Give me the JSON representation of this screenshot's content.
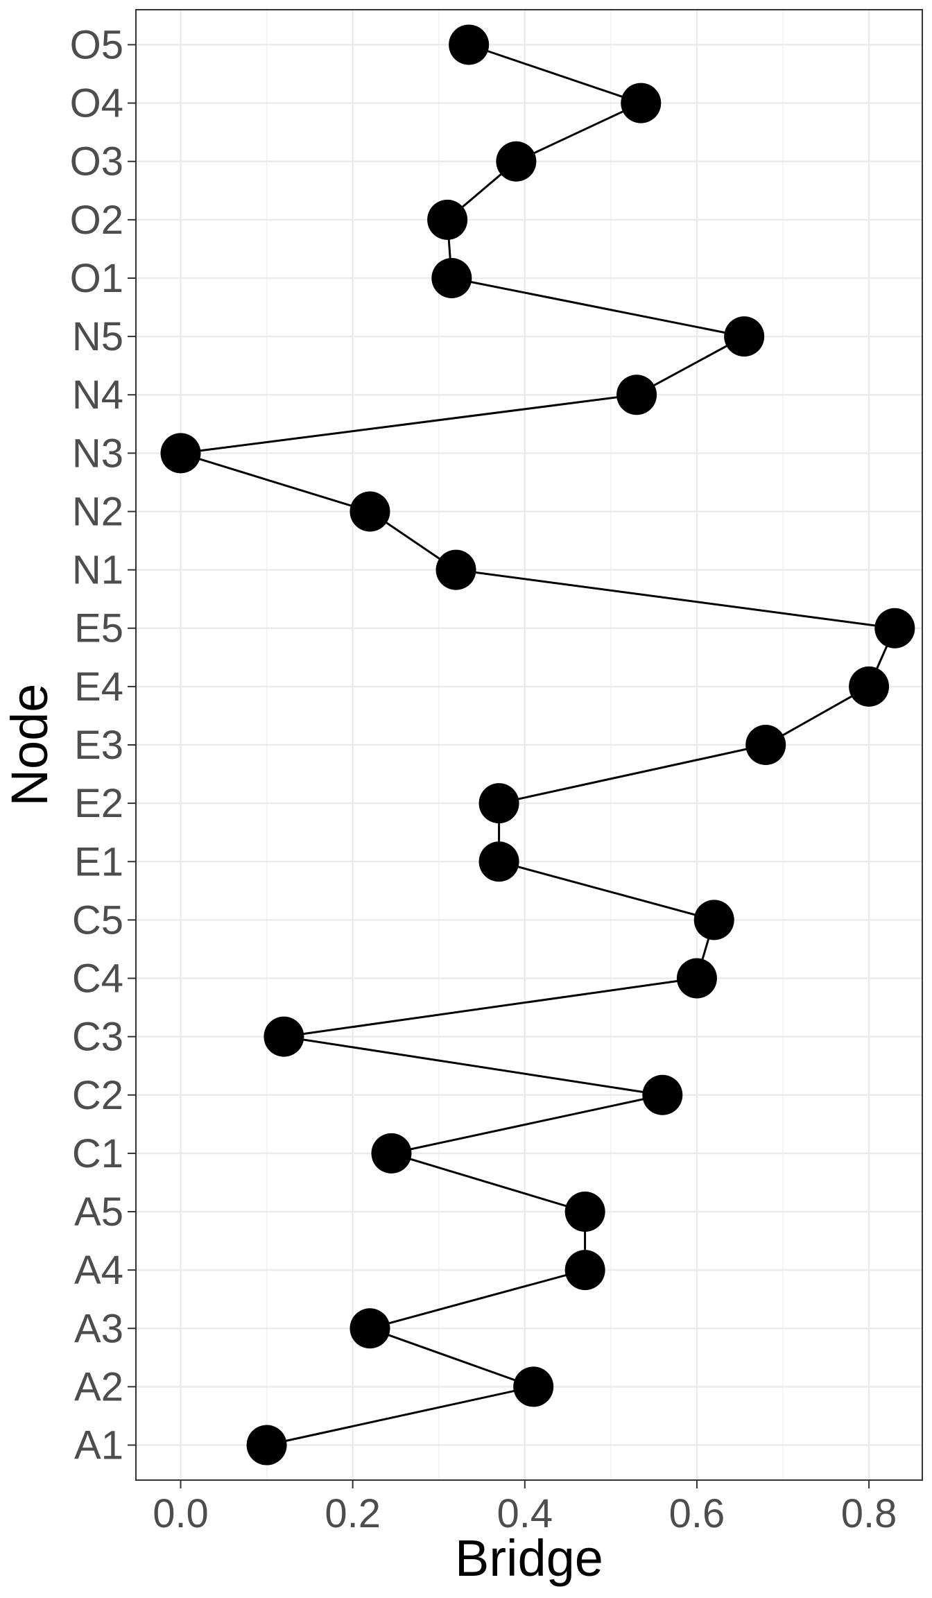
{
  "chart_data": {
    "type": "line",
    "xlabel": "Bridge",
    "ylabel": "Node",
    "xlim": [
      -0.052,
      0.862
    ],
    "x_ticks": [
      "0.0",
      "0.2",
      "0.4",
      "0.6",
      "0.8"
    ],
    "x_tick_values": [
      0.0,
      0.2,
      0.4,
      0.6,
      0.8
    ],
    "grid": true,
    "legend": "none",
    "marker_color": "#000000",
    "line_color": "#000000",
    "categories": [
      "A1",
      "A2",
      "A3",
      "A4",
      "A5",
      "C1",
      "C2",
      "C3",
      "C4",
      "C5",
      "E1",
      "E2",
      "E3",
      "E4",
      "E5",
      "N1",
      "N2",
      "N3",
      "N4",
      "N5",
      "O1",
      "O2",
      "O3",
      "O4",
      "O5"
    ],
    "values": [
      0.1,
      0.41,
      0.22,
      0.47,
      0.47,
      0.245,
      0.56,
      0.12,
      0.6,
      0.62,
      0.37,
      0.37,
      0.68,
      0.8,
      0.83,
      0.32,
      0.22,
      0.0,
      0.53,
      0.655,
      0.315,
      0.31,
      0.39,
      0.535,
      0.335
    ]
  }
}
